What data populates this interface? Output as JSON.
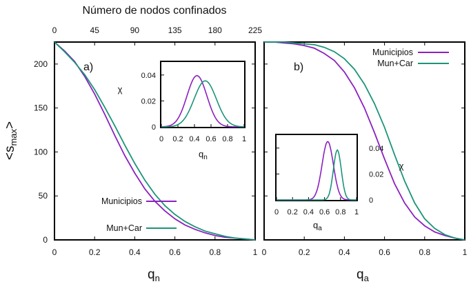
{
  "chart_data": [
    {
      "panel": "a)",
      "type": "line",
      "xlabel": "q",
      "xlabel_sub": "n",
      "ylabel": "<s",
      "ylabel_sub": "max",
      "ylabel_end": ">",
      "top_axis_label": "Número de nodos confinados",
      "top_ticks": [
        "0",
        "45",
        "90",
        "135",
        "180",
        "225"
      ],
      "x_ticks": [
        "0",
        "0.2",
        "0.4",
        "0.6",
        "0.8",
        "1"
      ],
      "y_ticks": [
        "0",
        "50",
        "100",
        "150",
        "200"
      ],
      "xlim": [
        0,
        1
      ],
      "ylim": [
        0,
        225
      ],
      "legend_placement": "bottom-right",
      "series": [
        {
          "name": "Municipios",
          "color": "#8B1FBF",
          "x": [
            0,
            0.05,
            0.1,
            0.15,
            0.2,
            0.25,
            0.3,
            0.35,
            0.4,
            0.45,
            0.5,
            0.55,
            0.6,
            0.65,
            0.7,
            0.75,
            0.8,
            0.85,
            0.9,
            0.95,
            1.0
          ],
          "y": [
            225,
            215,
            203,
            186,
            166,
            143,
            119,
            96,
            76,
            58,
            44,
            33,
            24,
            17,
            12,
            8,
            5,
            3,
            2,
            1,
            0
          ]
        },
        {
          "name": "Mun+Car",
          "color": "#1B9478",
          "x": [
            0,
            0.05,
            0.1,
            0.15,
            0.2,
            0.25,
            0.3,
            0.35,
            0.4,
            0.45,
            0.5,
            0.55,
            0.6,
            0.65,
            0.7,
            0.75,
            0.8,
            0.85,
            0.9,
            0.95,
            1.0
          ],
          "y": [
            225,
            214,
            202,
            188,
            171,
            151,
            130,
            108,
            87,
            68,
            52,
            39,
            29,
            21,
            15,
            10,
            7,
            4,
            2,
            1,
            0
          ]
        }
      ],
      "inset": {
        "ylabel": "χ",
        "x_ticks": [
          "0",
          "0.2",
          "0.4",
          "0.6",
          "0.8",
          "1"
        ],
        "y_ticks": [
          "0",
          "0.02",
          "0.04"
        ],
        "xlabel": "q",
        "xlabel_sub": "n",
        "xlim": [
          0,
          1
        ],
        "ylim": [
          0,
          0.05
        ],
        "series": [
          {
            "name": "Municipios",
            "color": "#8B1FBF",
            "peak_x": 0.43,
            "peak_y": 0.0395,
            "width": 0.17
          },
          {
            "name": "Mun+Car",
            "color": "#1B9478",
            "peak_x": 0.53,
            "peak_y": 0.0355,
            "width": 0.19
          }
        ]
      }
    },
    {
      "panel": "b)",
      "type": "line",
      "xlabel": "q",
      "xlabel_sub": "a",
      "x_ticks": [
        "0",
        "0.2",
        "0.4",
        "0.6",
        "0.8",
        "1"
      ],
      "xlim": [
        0,
        1
      ],
      "ylim": [
        0,
        225
      ],
      "legend_placement": "top-right",
      "series": [
        {
          "name": "Municipios",
          "color": "#8B1FBF",
          "x": [
            0,
            0.05,
            0.1,
            0.15,
            0.2,
            0.25,
            0.3,
            0.35,
            0.4,
            0.45,
            0.5,
            0.55,
            0.6,
            0.65,
            0.7,
            0.75,
            0.8,
            0.85,
            0.9,
            0.95,
            1.0
          ],
          "y": [
            225,
            225,
            224,
            223,
            221,
            218,
            212,
            204,
            191,
            173,
            150,
            122,
            92,
            64,
            42,
            26,
            16,
            9,
            5,
            2,
            0
          ]
        },
        {
          "name": "Mun+Car",
          "color": "#1B9478",
          "x": [
            0,
            0.05,
            0.1,
            0.15,
            0.2,
            0.25,
            0.3,
            0.35,
            0.4,
            0.45,
            0.5,
            0.55,
            0.6,
            0.65,
            0.7,
            0.75,
            0.8,
            0.85,
            0.9,
            0.95,
            1.0
          ],
          "y": [
            225,
            225,
            225,
            224,
            223,
            222,
            219,
            214,
            206,
            194,
            177,
            155,
            128,
            97,
            67,
            42,
            24,
            13,
            6,
            2,
            0
          ]
        }
      ],
      "inset": {
        "ylabel": "χ",
        "x_ticks": [
          "0",
          "0.2",
          "0.4",
          "0.6",
          "0.8",
          "1"
        ],
        "y_ticks": [
          "0",
          "0.02",
          "0.04"
        ],
        "xlabel": "q",
        "xlabel_sub": "a",
        "xlim": [
          0,
          1
        ],
        "ylim": [
          0,
          0.05
        ],
        "series": [
          {
            "name": "Municipios",
            "color": "#8B1FBF",
            "peak_x": 0.64,
            "peak_y": 0.045,
            "width": 0.1
          },
          {
            "name": "Mun+Car",
            "color": "#1B9478",
            "peak_x": 0.76,
            "peak_y": 0.0385,
            "width": 0.07
          }
        ]
      }
    }
  ]
}
